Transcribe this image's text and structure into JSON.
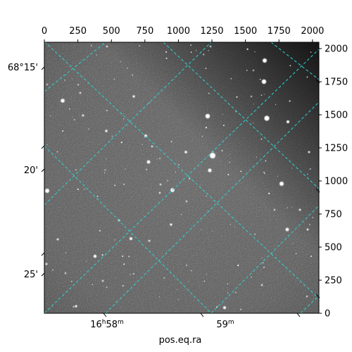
{
  "figure": {
    "x_pixel_axis": {
      "ticks": [
        0,
        250,
        500,
        750,
        1000,
        1250,
        1500,
        1750,
        2000
      ],
      "range": [
        0,
        2048
      ]
    },
    "y_pixel_axis": {
      "ticks": [
        0,
        250,
        500,
        750,
        1000,
        1250,
        1500,
        1750,
        2000
      ],
      "range": [
        0,
        2048
      ]
    },
    "dec_labels": [
      {
        "id": "dec-68-15",
        "text": "68°15'"
      },
      {
        "id": "dec-20",
        "text": "20'"
      },
      {
        "id": "dec-25",
        "text": "25'"
      }
    ],
    "ra_labels": [
      {
        "id": "ra-16h58m",
        "text": "16h58m"
      },
      {
        "id": "ra-59m",
        "text": "59m"
      }
    ],
    "xlabel": "pos.eq.ra",
    "grid_color": "#2fd3d3"
  }
}
